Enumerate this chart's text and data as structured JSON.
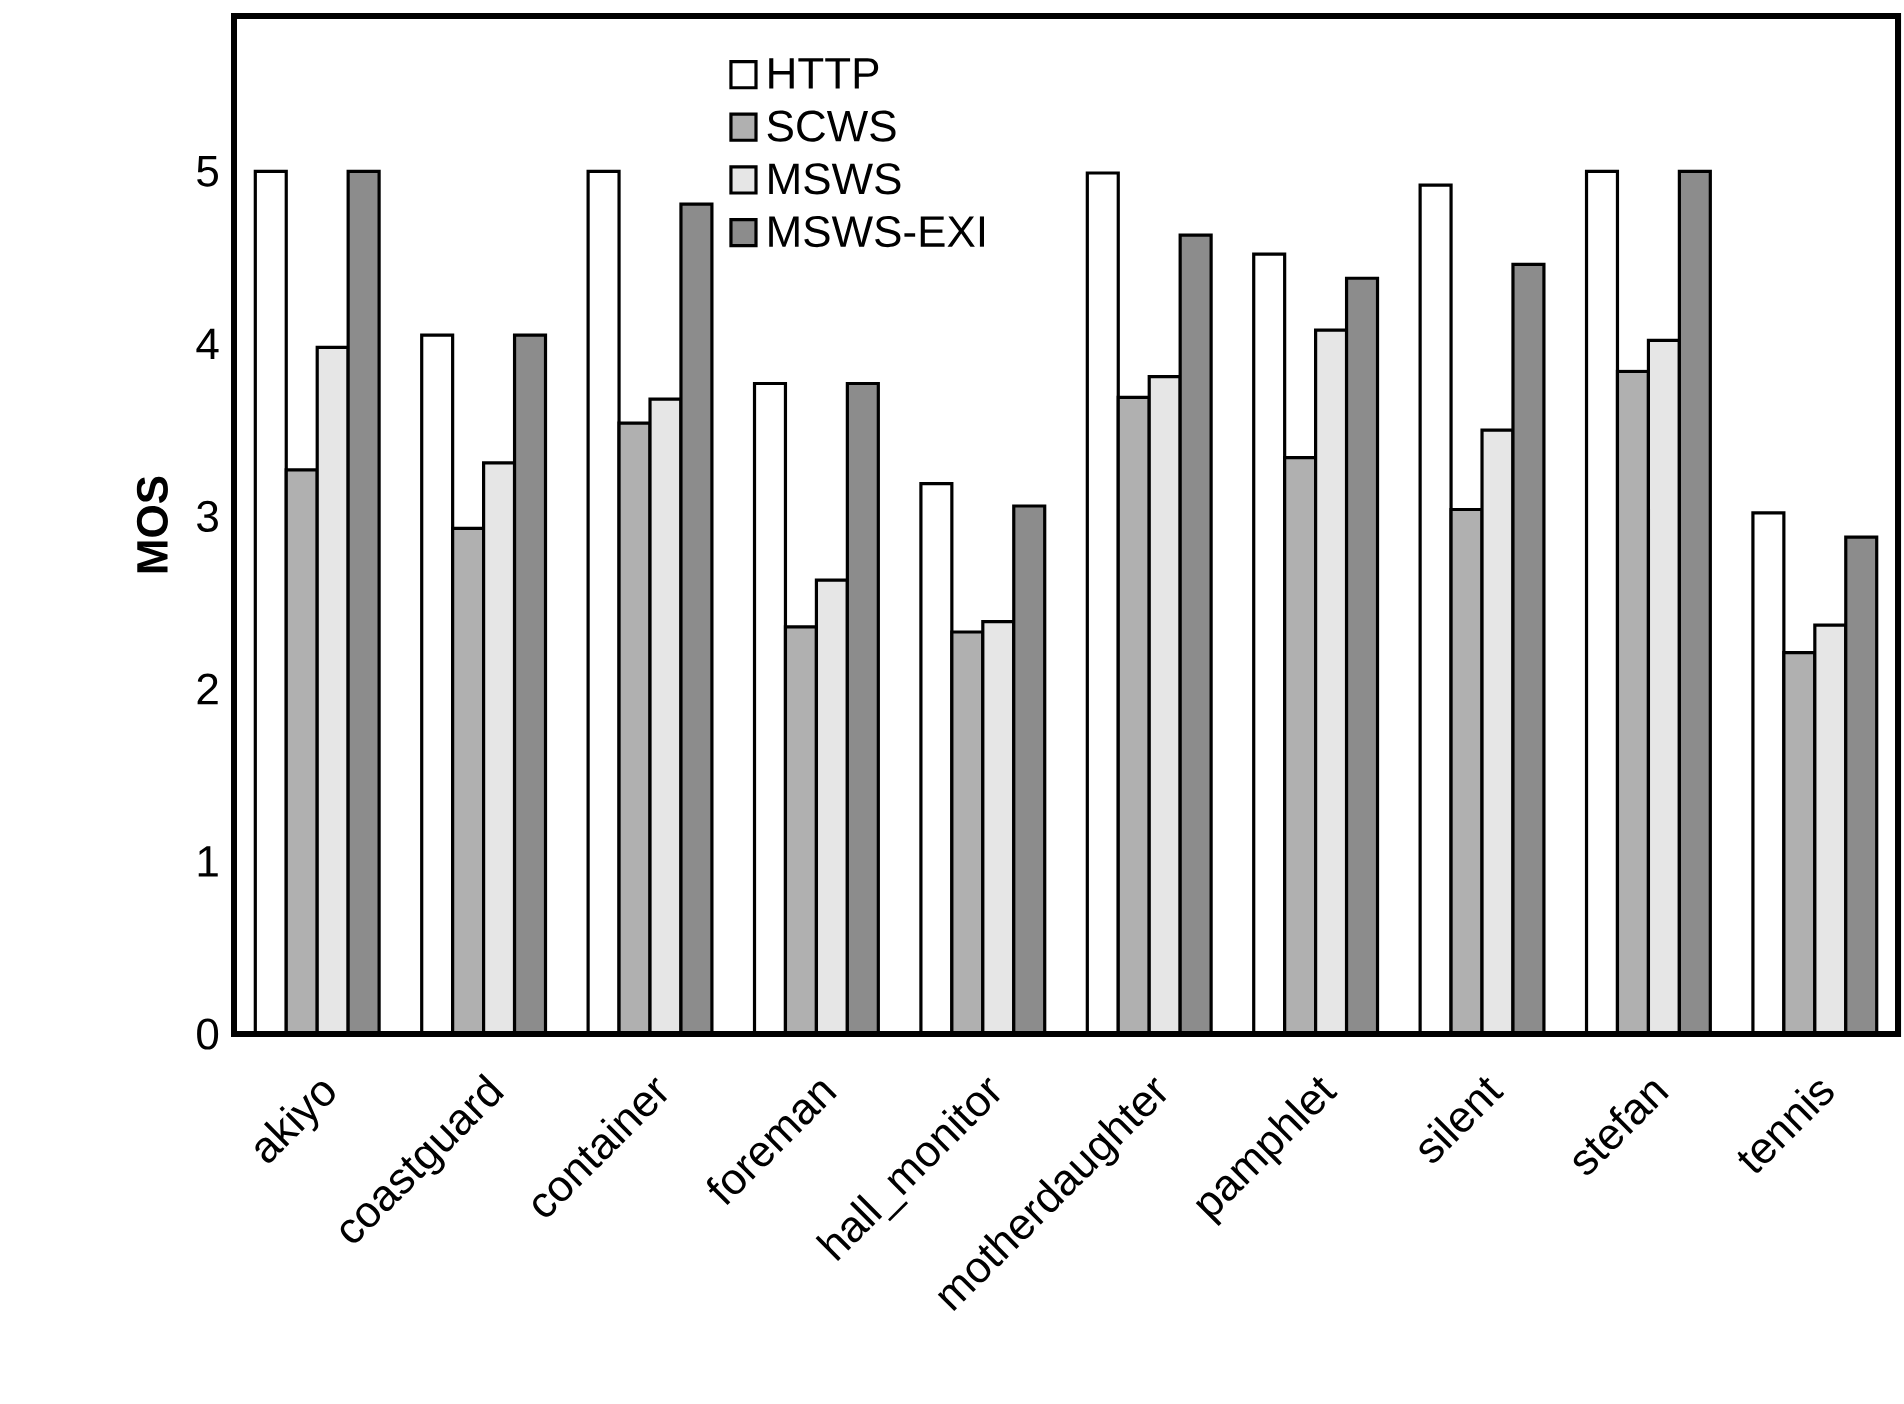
{
  "chart_data": {
    "type": "bar",
    "ylabel": "MOS",
    "categories": [
      "akiyo",
      "coastguard",
      "container",
      "foreman",
      "hall_monitor",
      "motherdaughter",
      "pamphlet",
      "silent",
      "stefan",
      "tennis"
    ],
    "series": [
      {
        "name": "HTTP",
        "color": "#ffffff",
        "values": [
          5.0,
          4.05,
          5.0,
          3.77,
          3.19,
          4.99,
          4.52,
          4.92,
          5.0,
          3.02
        ]
      },
      {
        "name": "SCWS",
        "color": "#b0b0b0",
        "values": [
          3.27,
          2.93,
          3.54,
          2.36,
          2.33,
          3.69,
          3.34,
          3.04,
          3.84,
          2.21
        ]
      },
      {
        "name": "MSWS",
        "color": "#e6e6e6",
        "values": [
          3.98,
          3.31,
          3.68,
          2.63,
          2.39,
          3.81,
          4.08,
          3.5,
          4.02,
          2.37
        ]
      },
      {
        "name": "MSWS-EXI",
        "color": "#8c8c8c",
        "values": [
          5.0,
          4.05,
          4.81,
          3.77,
          3.06,
          4.63,
          4.38,
          4.46,
          5.0,
          2.88
        ]
      }
    ],
    "ylim": [
      0,
      5.9
    ],
    "yticks": [
      0,
      1,
      2,
      3,
      4,
      5
    ],
    "grid": false,
    "legend": "top"
  }
}
